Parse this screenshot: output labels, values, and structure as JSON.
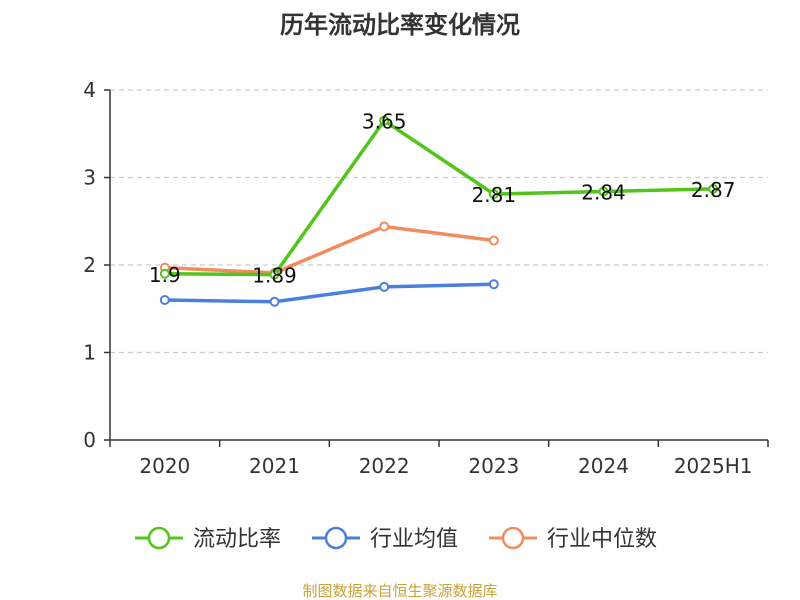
{
  "chart_data": {
    "type": "line",
    "title": "历年流动比率变化情况",
    "categories": [
      "2020",
      "2021",
      "2022",
      "2023",
      "2024",
      "2025H1"
    ],
    "ylim": [
      0,
      4
    ],
    "yticks": [
      0,
      1,
      2,
      3,
      4
    ],
    "grid": true,
    "legend_position": "bottom",
    "series": [
      {
        "name": "流动比率",
        "color": "#52c41a",
        "values": [
          1.9,
          1.89,
          3.65,
          2.81,
          2.84,
          2.87
        ],
        "labels": [
          "1.9",
          "1.89",
          "3.65",
          "2.81",
          "2.84",
          "2.87"
        ]
      },
      {
        "name": "行业均值",
        "color": "#4a7fdb",
        "values": [
          1.6,
          1.58,
          1.75,
          1.78,
          null,
          null
        ]
      },
      {
        "name": "行业中位数",
        "color": "#f28c5e",
        "values": [
          1.97,
          1.91,
          2.44,
          2.28,
          null,
          null
        ]
      }
    ],
    "source": "制图数据来自恒生聚源数据库"
  }
}
